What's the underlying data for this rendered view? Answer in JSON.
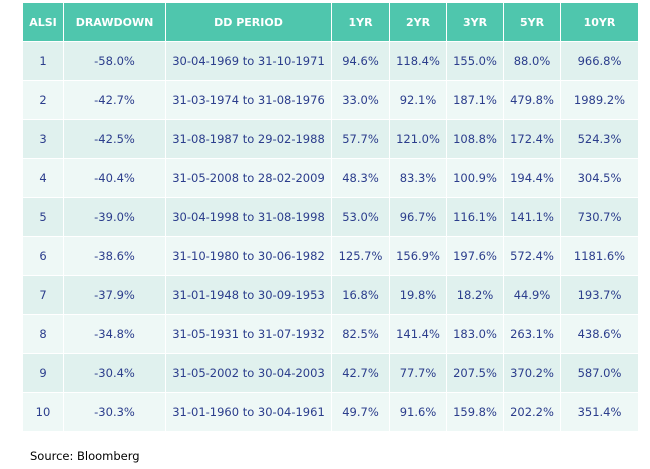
{
  "table": {
    "headers": [
      "ALSI",
      "DRAWDOWN",
      "DD PERIOD",
      "1YR",
      "2YR",
      "3YR",
      "5YR",
      "10YR"
    ],
    "rows": [
      [
        "1",
        "-58.0%",
        "30-04-1969 to 31-10-1971",
        "94.6%",
        "118.4%",
        "155.0%",
        "88.0%",
        "966.8%"
      ],
      [
        "2",
        "-42.7%",
        "31-03-1974 to 31-08-1976",
        "33.0%",
        "92.1%",
        "187.1%",
        "479.8%",
        "1989.2%"
      ],
      [
        "3",
        "-42.5%",
        "31-08-1987 to 29-02-1988",
        "57.7%",
        "121.0%",
        "108.8%",
        "172.4%",
        "524.3%"
      ],
      [
        "4",
        "-40.4%",
        "31-05-2008 to 28-02-2009",
        "48.3%",
        "83.3%",
        "100.9%",
        "194.4%",
        "304.5%"
      ],
      [
        "5",
        "-39.0%",
        "30-04-1998 to 31-08-1998",
        "53.0%",
        "96.7%",
        "116.1%",
        "141.1%",
        "730.7%"
      ],
      [
        "6",
        "-38.6%",
        "31-10-1980 to 30-06-1982",
        "125.7%",
        "156.9%",
        "197.6%",
        "572.4%",
        "1181.6%"
      ],
      [
        "7",
        "-37.9%",
        "31-01-1948 to 30-09-1953",
        "16.8%",
        "19.8%",
        "18.2%",
        "44.9%",
        "193.7%"
      ],
      [
        "8",
        "-34.8%",
        "31-05-1931 to 31-07-1932",
        "82.5%",
        "141.4%",
        "183.0%",
        "263.1%",
        "438.6%"
      ],
      [
        "9",
        "-30.4%",
        "31-05-2002 to 30-04-2003",
        "42.7%",
        "77.7%",
        "207.5%",
        "370.2%",
        "587.0%"
      ],
      [
        "10",
        "-30.3%",
        "31-01-1960 to 30-04-1961",
        "49.7%",
        "91.6%",
        "159.8%",
        "202.2%",
        "351.4%"
      ]
    ]
  },
  "source": "Source: Bloomberg",
  "colors": {
    "header_bg": "#4fc6ad",
    "header_text": "#ffffff",
    "row_bg_odd": "#e0f1ee",
    "row_bg_even": "#eef8f6",
    "cell_text": "#2b3d8c"
  }
}
